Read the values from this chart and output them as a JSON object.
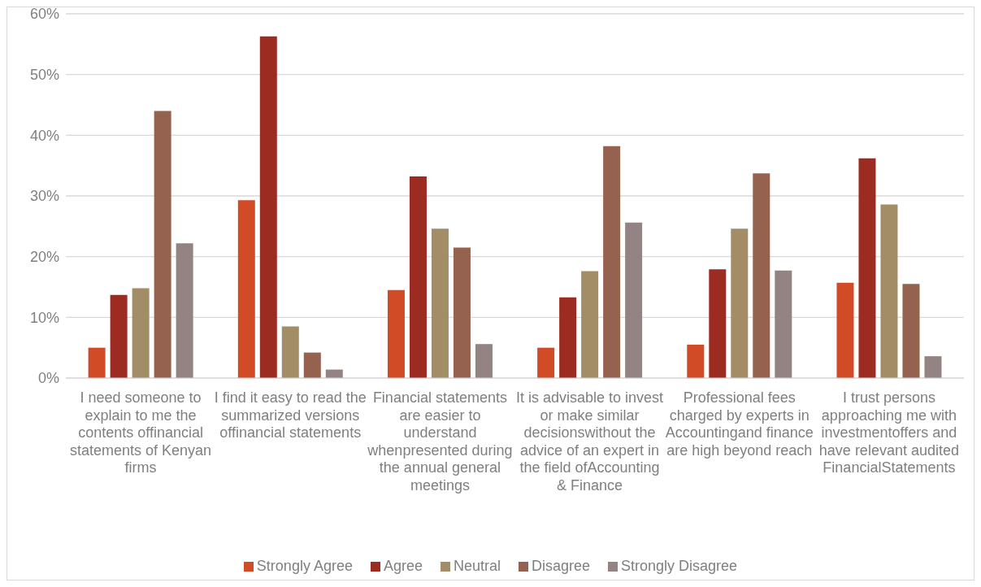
{
  "chart_data": {
    "type": "bar",
    "categories": [
      "I need someone to explain to me the contents offinancial statements of Kenyan firms",
      "I find it easy to read the summarized versions offinancial statements",
      "Financial statements are easier to understand whenpresented during the annual general meetings",
      "It is advisable to invest or make similar decisionswithout the advice of an expert in the field ofAccounting & Finance",
      "Professional fees charged by experts in Accountingand finance are high beyond reach",
      "I trust persons approaching me with investmentoffers and have relevant audited FinancialStatements"
    ],
    "series": [
      {
        "name": "Strongly Agree",
        "color": "#d24b27",
        "values": [
          5.0,
          29.3,
          14.5,
          5.0,
          5.5,
          15.7
        ]
      },
      {
        "name": "Agree",
        "color": "#9c2b21",
        "values": [
          13.7,
          56.3,
          33.2,
          13.3,
          17.9,
          36.2
        ]
      },
      {
        "name": "Neutral",
        "color": "#a38d66",
        "values": [
          14.8,
          8.5,
          24.6,
          17.6,
          24.6,
          28.6
        ]
      },
      {
        "name": "Disagree",
        "color": "#956250",
        "values": [
          44.0,
          4.2,
          21.5,
          38.2,
          33.7,
          15.5
        ]
      },
      {
        "name": "Strongly Disagree",
        "color": "#938483",
        "values": [
          22.2,
          1.4,
          5.6,
          25.6,
          17.7,
          3.6
        ]
      }
    ],
    "ylim": [
      0,
      60
    ],
    "yticks": [
      {
        "value": 0,
        "label": "0%"
      },
      {
        "value": 10,
        "label": "10%"
      },
      {
        "value": 20,
        "label": "20%"
      },
      {
        "value": 30,
        "label": "30%"
      },
      {
        "value": 40,
        "label": "40%"
      },
      {
        "value": 50,
        "label": "50%"
      },
      {
        "value": 60,
        "label": "60%"
      }
    ],
    "grid": "y",
    "legend": "bottom"
  }
}
